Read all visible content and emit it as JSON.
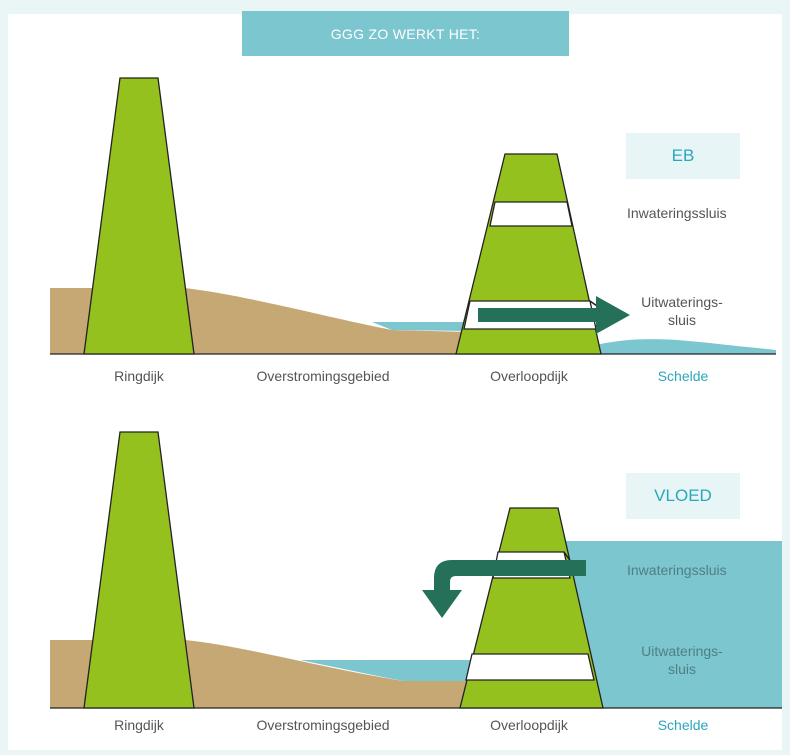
{
  "title": "GGG ZO WERKT HET:",
  "colors": {
    "background": "#eaf5f6",
    "title_bar": "#7cc6cf",
    "dike_green": "#95c11f",
    "land_brown": "#c6a874",
    "water": "#7cc6cf",
    "arrow": "#247059",
    "accent_text": "#2aa7bd"
  },
  "eb": {
    "mode": "EB",
    "inlet_label": "Inwateringssluis",
    "outlet_label_line1": "Uitwaterings-",
    "outlet_label_line2": "sluis",
    "ground_labels": {
      "ringdijk": "Ringdijk",
      "overstromingsgebied": "Overstromingsgebied",
      "overloopdijk": "Overloopdijk",
      "schelde": "Schelde"
    }
  },
  "vloed": {
    "mode": "VLOED",
    "inlet_label": "Inwateringssluis",
    "outlet_label_line1": "Uitwaterings-",
    "outlet_label_line2": "sluis",
    "ground_labels": {
      "ringdijk": "Ringdijk",
      "overstromingsgebied": "Overstromingsgebied",
      "overloopdijk": "Overloopdijk",
      "schelde": "Schelde"
    }
  }
}
